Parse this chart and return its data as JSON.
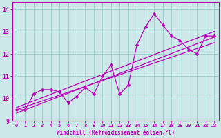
{
  "title": "",
  "xlabel": "Windchill (Refroidissement éolien,°C)",
  "ylabel": "",
  "bg_color": "#cce8e8",
  "line_color": "#bb00bb",
  "grid_color": "#99cccc",
  "x_data": [
    0,
    1,
    2,
    3,
    4,
    5,
    6,
    7,
    8,
    9,
    10,
    11,
    12,
    13,
    14,
    15,
    16,
    17,
    18,
    19,
    20,
    21,
    22,
    23
  ],
  "y_data": [
    9.5,
    9.5,
    10.2,
    10.4,
    10.4,
    10.3,
    9.8,
    10.1,
    10.5,
    10.2,
    11.0,
    11.5,
    10.2,
    10.6,
    12.4,
    13.2,
    13.8,
    13.3,
    12.8,
    12.6,
    12.2,
    12.0,
    12.8,
    12.8
  ],
  "reg_line1_x": [
    0,
    23
  ],
  "reg_line1_y": [
    9.35,
    12.75
  ],
  "reg_line2_x": [
    0,
    23
  ],
  "reg_line2_y": [
    9.5,
    12.5
  ],
  "reg_line3_x": [
    0,
    23
  ],
  "reg_line3_y": [
    9.6,
    13.0
  ],
  "xlim": [
    -0.5,
    23.5
  ],
  "ylim": [
    9.0,
    14.3
  ],
  "yticks": [
    9,
    10,
    11,
    12,
    13,
    14
  ],
  "xticks": [
    0,
    1,
    2,
    3,
    4,
    5,
    6,
    7,
    8,
    9,
    10,
    11,
    12,
    13,
    14,
    15,
    16,
    17,
    18,
    19,
    20,
    21,
    22,
    23
  ],
  "tick_fontsize": 5,
  "xlabel_fontsize": 5.5,
  "marker_size": 2.5,
  "line_width": 0.9
}
